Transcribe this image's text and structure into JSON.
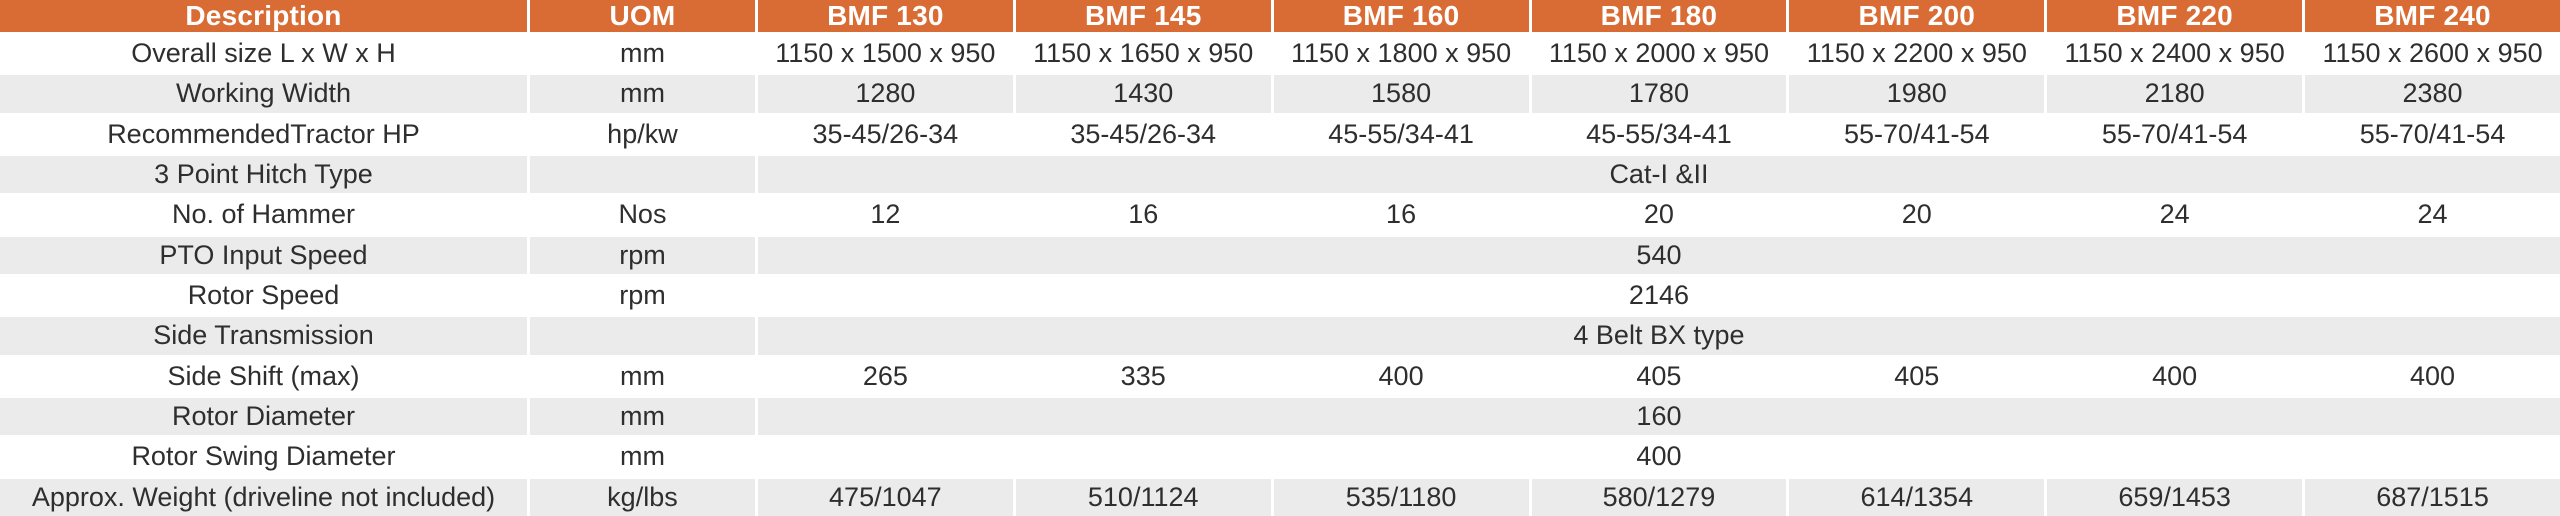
{
  "colors": {
    "header_bg": "#D96C35",
    "header_text": "#FFFFFF",
    "row_alt_bg": "#EBEBEB",
    "body_text": "#2E2E2E"
  },
  "table": {
    "columns": [
      "Description",
      "UOM",
      "BMF 130",
      "BMF 145",
      "BMF 160",
      "BMF 180",
      "BMF 200",
      "BMF 220",
      "BMF 240"
    ],
    "rows": [
      {
        "label": "Overall size L x W x H",
        "uom": "mm",
        "values": [
          "1150 x 1500 x 950",
          "1150 x 1650 x 950",
          "1150 x 1800 x 950",
          "1150 x 2000 x 950",
          "1150 x 2200 x 950",
          "1150 x 2400 x 950",
          "1150 x 2600 x 950"
        ]
      },
      {
        "label": "Working Width",
        "uom": "mm",
        "values": [
          "1280",
          "1430",
          "1580",
          "1780",
          "1980",
          "2180",
          "2380"
        ]
      },
      {
        "label": "RecommendedTractor HP",
        "uom": "hp/kw",
        "values": [
          "35-45/26-34",
          "35-45/26-34",
          "45-55/34-41",
          "45-55/34-41",
          "55-70/41-54",
          "55-70/41-54",
          "55-70/41-54"
        ]
      },
      {
        "label": "3 Point Hitch Type",
        "uom": "",
        "merged": "Cat-I &II"
      },
      {
        "label": "No. of Hammer",
        "uom": "Nos",
        "values": [
          "12",
          "16",
          "16",
          "20",
          "20",
          "24",
          "24"
        ]
      },
      {
        "label": "PTO Input Speed",
        "uom": "rpm",
        "merged": "540"
      },
      {
        "label": "Rotor Speed",
        "uom": "rpm",
        "merged": "2146"
      },
      {
        "label": "Side Transmission",
        "uom": "",
        "merged": "4 Belt BX type"
      },
      {
        "label": "Side Shift (max)",
        "uom": "mm",
        "values": [
          "265",
          "335",
          "400",
          "405",
          "405",
          "400",
          "400"
        ]
      },
      {
        "label": "Rotor Diameter",
        "uom": "mm",
        "merged": "160"
      },
      {
        "label": "Rotor Swing Diameter",
        "uom": "mm",
        "merged": "400"
      },
      {
        "label": "Approx. Weight (driveline not included)",
        "uom": "kg/lbs",
        "values": [
          "475/1047",
          "510/1124",
          "535/1180",
          "580/1279",
          "614/1354",
          "659/1453",
          "687/1515"
        ]
      }
    ]
  }
}
